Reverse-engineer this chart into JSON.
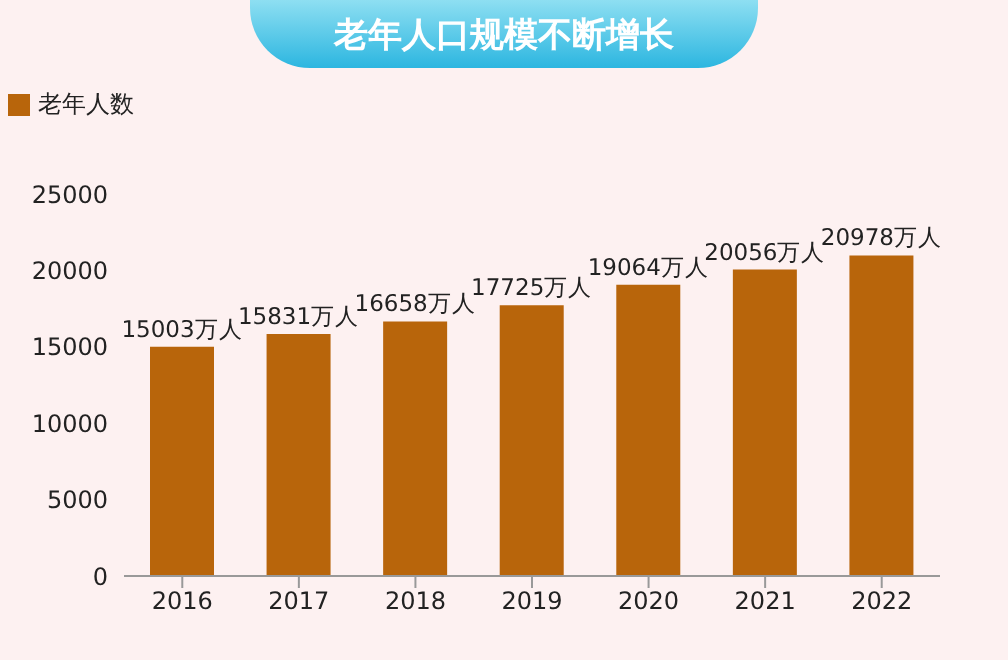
{
  "chart_data": {
    "type": "bar",
    "title": "老年人口规模不断增长",
    "categories": [
      "2016",
      "2017",
      "2018",
      "2019",
      "2020",
      "2021",
      "2022"
    ],
    "series": [
      {
        "name": "老年人数",
        "color": "#b8650b",
        "values": [
          15003,
          15831,
          16658,
          17725,
          19064,
          20056,
          20978
        ],
        "value_labels": [
          "15003万人",
          "15831万人",
          "16658万人",
          "17725万人",
          "19064万人",
          "20056万人",
          "20978万人"
        ]
      }
    ],
    "ylim": [
      0,
      25000
    ],
    "yticks": [
      0,
      5000,
      10000,
      15000,
      20000,
      25000
    ],
    "grid": false,
    "legend": "top left"
  }
}
